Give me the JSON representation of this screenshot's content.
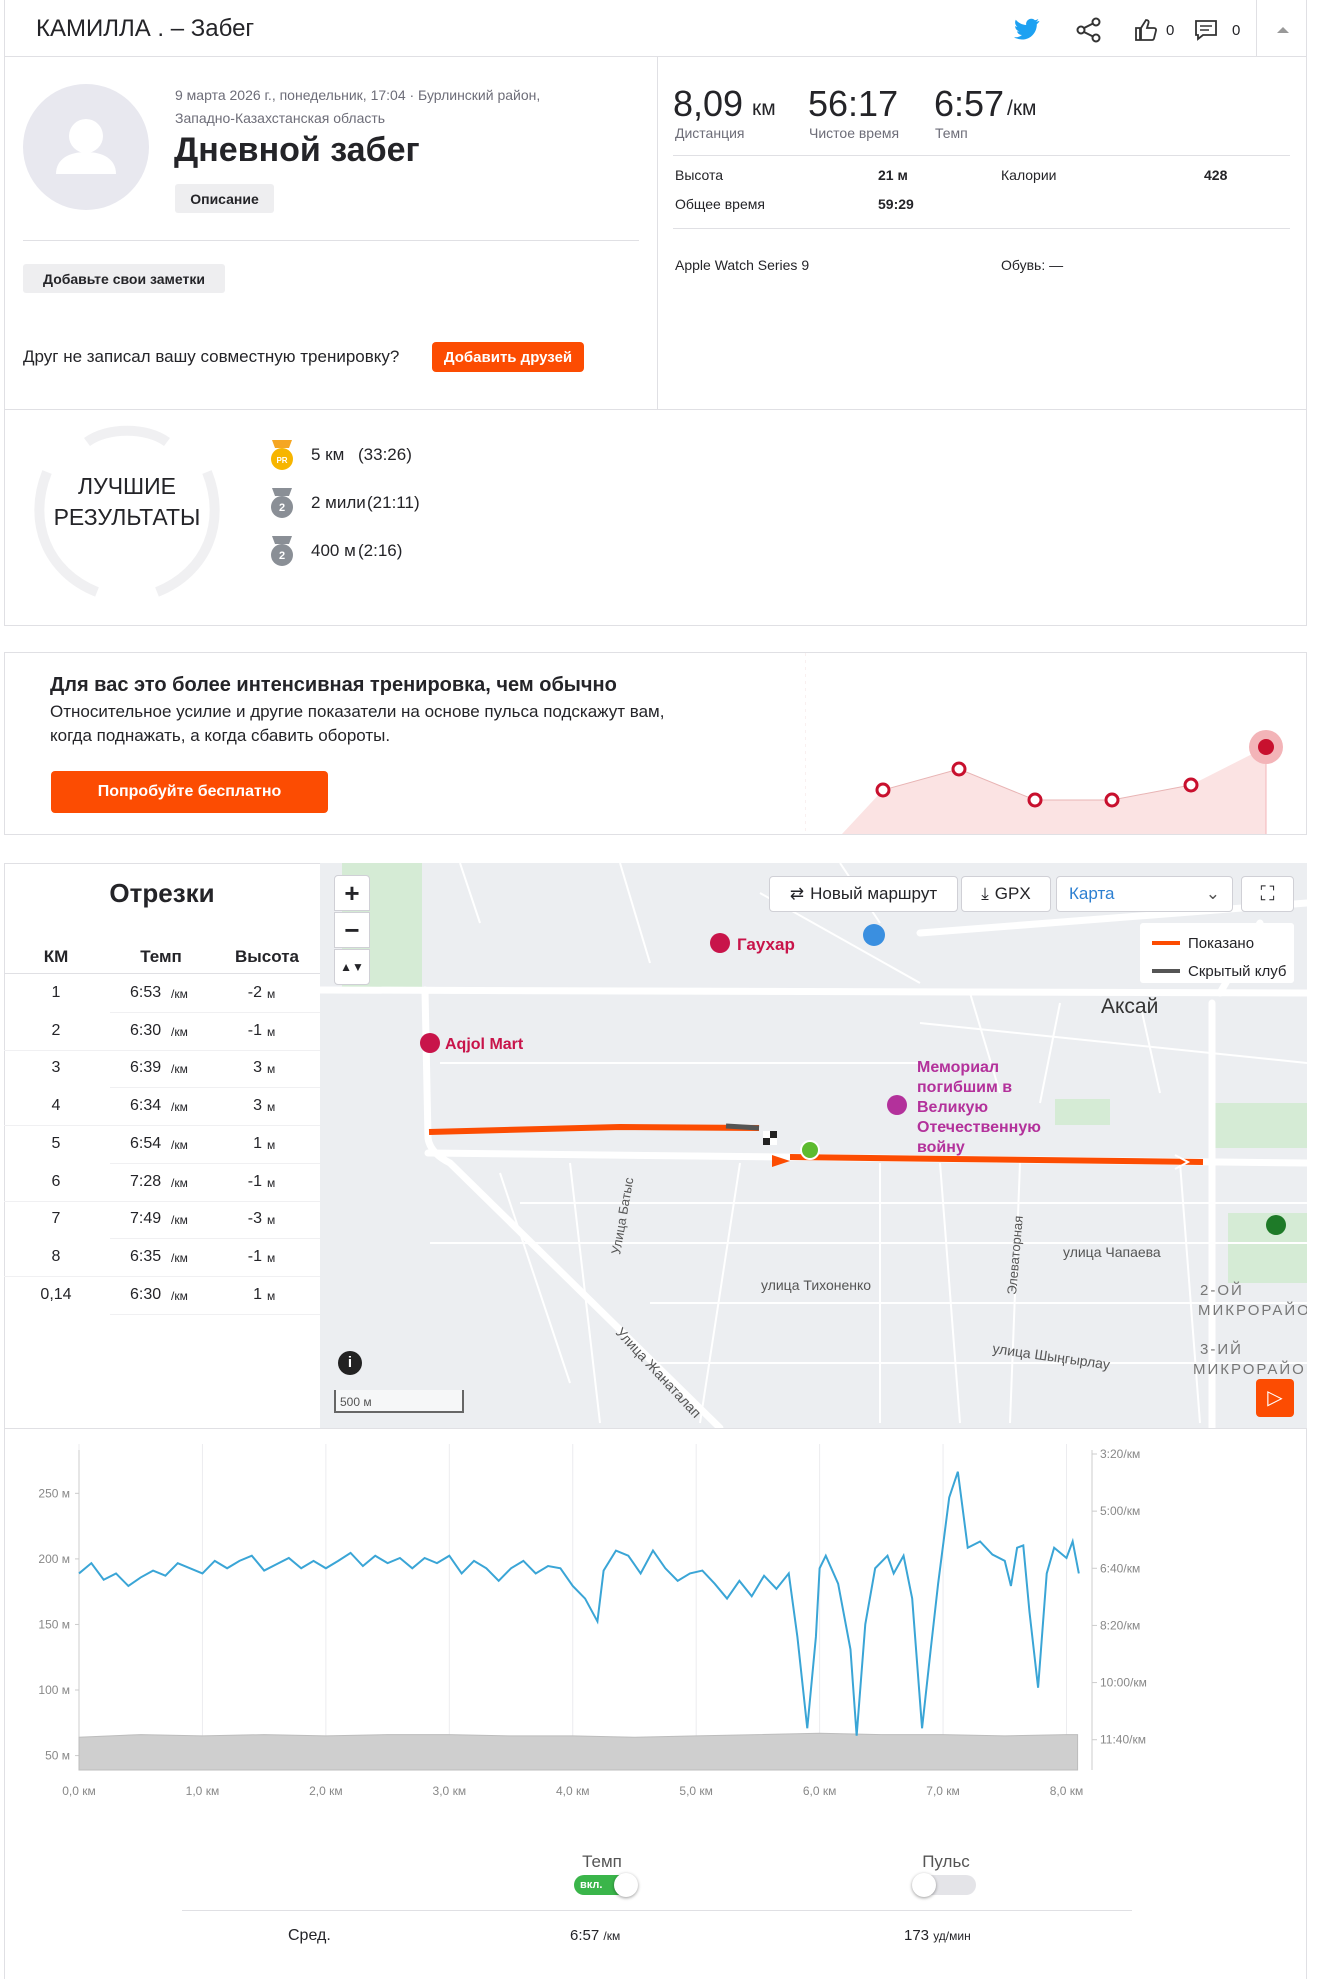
{
  "header": {
    "title": "КАМИЛЛА . – Забег",
    "kudos": "0",
    "comments": "0"
  },
  "activity": {
    "date": "9 марта 2026 г., понедельник, 17:04 · Бурлинский район,",
    "location": "Западно-Казахстанская область",
    "title": "Дневной забег",
    "description_button": "Описание",
    "notes_button": "Добавьте свои заметки",
    "friends_prompt": "Друг не записал вашу совместную тренировку?",
    "friends_button": "Добавить друзей"
  },
  "stats": {
    "primary": [
      {
        "value": "8,09",
        "unit": "км",
        "label": "Дистанция"
      },
      {
        "value": "56:17",
        "label": "Чистое время"
      },
      {
        "value": "6:57",
        "unit": "/км",
        "label": "Темп"
      }
    ],
    "details": [
      {
        "label": "Высота",
        "value": "21 м"
      },
      {
        "label": "Калории",
        "value": "428"
      },
      {
        "label": "Общее время",
        "value": "59:29"
      }
    ],
    "device": "Apple Watch Series 9",
    "shoes": "Обувь: —"
  },
  "best_efforts": {
    "title": [
      "ЛУЧШИЕ",
      "РЕЗУЛЬТАТЫ"
    ],
    "items": [
      {
        "badge": "PR",
        "name": "5 км",
        "time": "(33:26)"
      },
      {
        "badge": "2",
        "name": "2 мили",
        "time": "(21:11)"
      },
      {
        "badge": "2",
        "name": "400 м",
        "time": "(2:16)"
      }
    ]
  },
  "promo": {
    "title": "Для вас это более интенсивная тренировка, чем обычно",
    "body": [
      "Относительное усилие и другие показатели на основе пульса подскажут вам,",
      "когда поднажать, а когда сбавить обороты."
    ],
    "button": "Попробуйте бесплатно"
  },
  "splits": {
    "title": "Отрезки",
    "columns": [
      "КМ",
      "Темп",
      "Высота"
    ],
    "pace_unit": "/км",
    "elev_unit": "м",
    "rows": [
      {
        "km": "1",
        "pace": "6:53",
        "elev": "-2"
      },
      {
        "km": "2",
        "pace": "6:30",
        "elev": "-1"
      },
      {
        "km": "3",
        "pace": "6:39",
        "elev": "3"
      },
      {
        "km": "4",
        "pace": "6:34",
        "elev": "3"
      },
      {
        "km": "5",
        "pace": "6:54",
        "elev": "1"
      },
      {
        "km": "6",
        "pace": "7:28",
        "elev": "-1"
      },
      {
        "km": "7",
        "pace": "7:49",
        "elev": "-3"
      },
      {
        "km": "8",
        "pace": "6:35",
        "elev": "-1"
      },
      {
        "km": "0,14",
        "pace": "6:30",
        "elev": "1"
      }
    ]
  },
  "map": {
    "new_route": "Новый маршрут",
    "gpx": "GPX",
    "layer": "Карта",
    "legend": [
      "Показано",
      "Скрытый клуб"
    ],
    "places": {
      "gauhar": "Гаухар",
      "aqjol": "Aqjol Mart",
      "memorial": [
        "Мемориал",
        "погибшим в",
        "Великую",
        "Отечественную",
        "войну"
      ],
      "aksai": "Аксай",
      "chapaeva": "улица Чапаева",
      "tikhonenko": "улица Тихоненко",
      "shyngyrlau": "улица Шыңгырлау",
      "zhanatalap": "Улица Жанаталап",
      "batys": "Улица Батыс",
      "elevatornaya": "Элеваторная",
      "mkr2": [
        "2-ОЙ",
        "МИКРОРАЙОН"
      ],
      "mkr3": [
        "3-ИЙ",
        "МИКРОРАЙОН"
      ]
    },
    "scale": "500 м"
  },
  "chart_data": {
    "type": "line",
    "xlim": [
      0,
      8.15
    ],
    "xticks": [
      {
        "value": 0,
        "label": "0,0 км"
      },
      {
        "value": 1,
        "label": "1,0 км"
      },
      {
        "value": 2,
        "label": "2,0 км"
      },
      {
        "value": 3,
        "label": "3,0 км"
      },
      {
        "value": 4,
        "label": "4,0 км"
      },
      {
        "value": 5,
        "label": "5,0 км"
      },
      {
        "value": 6,
        "label": "6,0 км"
      },
      {
        "value": 7,
        "label": "7,0 км"
      },
      {
        "value": 8,
        "label": "8,0 км"
      }
    ],
    "ylim": [
      39,
      280
    ],
    "yticks": [
      {
        "value": 50,
        "label": "50 м"
      },
      {
        "value": 100,
        "label": "100 м"
      },
      {
        "value": 150,
        "label": "150 м"
      },
      {
        "value": 200,
        "label": "200 м"
      },
      {
        "value": 250,
        "label": "250 м"
      }
    ],
    "y2lim": [
      753,
      200
    ],
    "y2ticks": [
      {
        "value": 200,
        "label": "3:20/км"
      },
      {
        "value": 300,
        "label": "5:00/км"
      },
      {
        "value": 400,
        "label": "6:40/км"
      },
      {
        "value": 500,
        "label": "8:20/км"
      },
      {
        "value": 600,
        "label": "10:00/км"
      },
      {
        "value": 700,
        "label": "11:40/км"
      }
    ],
    "grid": "x",
    "series": [
      {
        "kind": "area",
        "axis": "y",
        "color": "#cfcfcf",
        "x": [
          0,
          0.5,
          1,
          1.5,
          2,
          2.5,
          3,
          3.5,
          4,
          4.5,
          5,
          5.5,
          6,
          6.5,
          7,
          7.5,
          8,
          8.09
        ],
        "values": [
          64,
          66,
          65,
          66,
          65,
          66,
          66,
          65,
          65,
          64,
          65,
          66,
          67,
          66,
          66,
          65,
          66,
          66
        ]
      },
      {
        "kind": "line",
        "axis": "y2",
        "color": "#3aa5d6",
        "x": [
          0,
          0.1,
          0.2,
          0.3,
          0.4,
          0.5,
          0.6,
          0.7,
          0.8,
          0.9,
          1.0,
          1.1,
          1.2,
          1.3,
          1.4,
          1.5,
          1.6,
          1.7,
          1.8,
          1.9,
          2.0,
          2.1,
          2.2,
          2.3,
          2.4,
          2.5,
          2.6,
          2.7,
          2.8,
          2.9,
          3.0,
          3.1,
          3.2,
          3.3,
          3.4,
          3.5,
          3.6,
          3.7,
          3.8,
          3.9,
          4.0,
          4.1,
          4.2,
          4.25,
          4.35,
          4.45,
          4.55,
          4.65,
          4.75,
          4.85,
          4.95,
          5.05,
          5.15,
          5.25,
          5.35,
          5.45,
          5.55,
          5.65,
          5.75,
          5.82,
          5.9,
          5.97,
          6.0,
          6.05,
          6.15,
          6.25,
          6.3,
          6.37,
          6.45,
          6.55,
          6.6,
          6.68,
          6.75,
          6.83,
          6.9,
          6.96,
          7.05,
          7.12,
          7.2,
          7.3,
          7.4,
          7.5,
          7.55,
          7.6,
          7.65,
          7.7,
          7.77,
          7.84,
          7.9,
          8.0,
          8.05,
          8.1
        ],
        "values": [
          409,
          391,
          420,
          409,
          431,
          416,
          404,
          413,
          391,
          400,
          409,
          387,
          400,
          387,
          378,
          404,
          393,
          382,
          400,
          387,
          400,
          387,
          373,
          396,
          378,
          391,
          382,
          400,
          382,
          391,
          378,
          409,
          387,
          400,
          422,
          400,
          387,
          409,
          396,
          400,
          431,
          453,
          493,
          404,
          369,
          378,
          409,
          369,
          400,
          422,
          409,
          404,
          427,
          453,
          422,
          449,
          413,
          436,
          409,
          520,
          680,
          520,
          400,
          378,
          427,
          542,
          693,
          498,
          400,
          378,
          409,
          378,
          453,
          680,
          542,
          427,
          276,
          231,
          364,
          353,
          376,
          387,
          431,
          364,
          360,
          476,
          609,
          409,
          364,
          382,
          353,
          409
        ]
      }
    ]
  },
  "footer": {
    "pace_toggle": "Темп",
    "on": "вкл.",
    "hr_toggle": "Пульс",
    "avg": "Сред.",
    "avg_pace": "6:57",
    "avg_pace_unit": "/км",
    "avg_hr": "173",
    "avg_hr_unit": "уд/мин"
  }
}
